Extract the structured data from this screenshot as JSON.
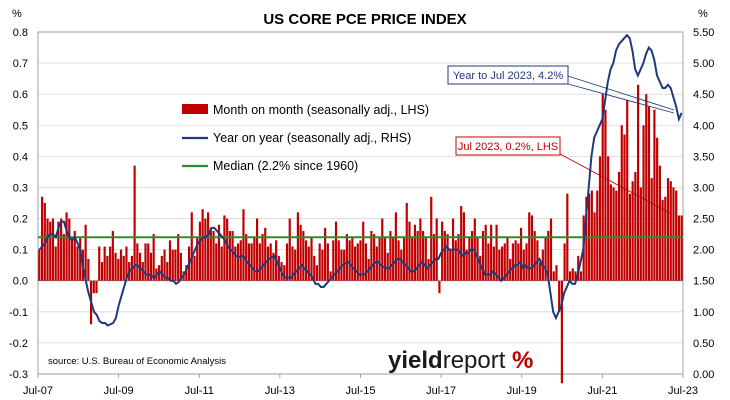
{
  "chart_data": {
    "type": "bar+line",
    "title": "US CORE PCE PRICE INDEX",
    "left_unit": "%",
    "right_unit": "%",
    "x_tick_labels": [
      "Jul-07",
      "Jul-09",
      "Jul-11",
      "Jul-13",
      "Jul-15",
      "Jul-17",
      "Jul-19",
      "Jul-21",
      "Jul-23"
    ],
    "left_axis": {
      "ylim": [
        -0.3,
        0.8
      ],
      "ticks": [
        "-0.3",
        "-0.2",
        "-0.1",
        "0.0",
        "0.1",
        "0.2",
        "0.3",
        "0.4",
        "0.5",
        "0.6",
        "0.7",
        "0.8"
      ]
    },
    "right_axis": {
      "ylim": [
        0.0,
        5.5
      ],
      "ticks": [
        "0.00",
        "0.50",
        "1.00",
        "1.50",
        "2.00",
        "2.50",
        "3.00",
        "3.50",
        "4.00",
        "4.50",
        "5.00",
        "5.50"
      ]
    },
    "legend": [
      {
        "label": "Month on month (seasonally adj., LHS)",
        "color": "#c00000"
      },
      {
        "label": "Year on year (seasonally adj., RHS)",
        "color": "#1f3a7a"
      },
      {
        "label": "Median (2.2% since 1960)",
        "color": "#2e8b2e"
      }
    ],
    "annotations": {
      "yoy": "Year to Jul 2023, 4.2%",
      "mom": "Jul 2023, 0.2%, LHS"
    },
    "source": "source: U.S. Bureau of Economic Analysis",
    "logo": {
      "part1": "yield",
      "part2": "report",
      "symbol": "%"
    },
    "median_rhs": 2.2,
    "series": [
      {
        "name": "Month on month (seasonally adj., LHS)",
        "color": "#c00000",
        "values": [
          0.1,
          0.27,
          0.25,
          0.2,
          0.19,
          0.2,
          0.11,
          0.19,
          0.2,
          0.15,
          0.22,
          0.2,
          0.14,
          0.16,
          0.11,
          0.14,
          0.1,
          0.18,
          0.07,
          -0.14,
          -0.04,
          -0.04,
          0.11,
          0.06,
          0.11,
          0.08,
          0.11,
          0.16,
          0.09,
          0.07,
          0.1,
          0.08,
          0.11,
          0.06,
          0.08,
          0.37,
          0.12,
          0.09,
          0.06,
          0.12,
          0.12,
          0.09,
          0.15,
          0.04,
          0.05,
          0.08,
          0.1,
          0.06,
          0.13,
          0.1,
          0.1,
          0.15,
          0.09,
          0.03,
          0.05,
          0.11,
          0.22,
          0.08,
          0.14,
          0.19,
          0.23,
          0.2,
          0.22,
          0.17,
          0.16,
          0.12,
          0.18,
          0.11,
          0.21,
          0.2,
          0.16,
          0.16,
          0.11,
          0.12,
          0.13,
          0.23,
          0.15,
          0.12,
          0.12,
          0.14,
          0.2,
          0.12,
          0.15,
          0.17,
          0.11,
          0.12,
          0.09,
          0.13,
          0.08,
          0.06,
          0.05,
          0.12,
          0.2,
          0.11,
          0.1,
          0.22,
          0.18,
          0.16,
          0.13,
          0.11,
          0.14,
          0.08,
          0.05,
          0.12,
          0.1,
          0.17,
          0.12,
          0.03,
          0.13,
          0.19,
          0.13,
          0.1,
          0.1,
          0.15,
          0.13,
          0.14,
          0.11,
          0.12,
          0.13,
          0.19,
          0.12,
          0.07,
          0.16,
          0.15,
          0.11,
          0.14,
          0.2,
          0.14,
          0.09,
          0.16,
          0.14,
          0.22,
          0.13,
          0.1,
          0.14,
          0.25,
          0.19,
          0.14,
          0.18,
          0.16,
          0.2,
          0.16,
          0.14,
          0.07,
          0.27,
          0.15,
          0.2,
          -0.04,
          0.19,
          0.16,
          0.15,
          0.1,
          0.2,
          0.13,
          0.15,
          0.24,
          0.22,
          0.1,
          0.14,
          0.16,
          0.2,
          0.14,
          0.08,
          0.16,
          0.18,
          0.12,
          0.18,
          0.11,
          0.18,
          0.1,
          0.11,
          0.12,
          0.14,
          0.07,
          0.12,
          0.13,
          0.12,
          0.17,
          0.1,
          0.12,
          0.22,
          0.21,
          0.16,
          0.13,
          0.06,
          0.1,
          0.14,
          0.16,
          0.2,
          0.03,
          0.05,
          -0.1,
          -0.33,
          0.12,
          0.28,
          0.03,
          0.04,
          0.03,
          0.08,
          0.03,
          0.21,
          0.27,
          0.28,
          0.29,
          0.22,
          0.29,
          0.4,
          0.6,
          0.55,
          0.4,
          0.31,
          0.3,
          0.29,
          0.35,
          0.5,
          0.47,
          0.58,
          0.28,
          0.32,
          0.35,
          0.63,
          0.3,
          0.5,
          0.6,
          0.56,
          0.33,
          0.55,
          0.46,
          0.37,
          0.26,
          0.27,
          0.33,
          0.32,
          0.3,
          0.29,
          0.21,
          0.21
        ]
      },
      {
        "name": "Year on year (seasonally adj., RHS)",
        "color": "#1f3a7a",
        "values": [
          2.0,
          2.05,
          2.1,
          2.2,
          2.25,
          2.25,
          2.2,
          2.35,
          2.45,
          2.45,
          2.3,
          2.2,
          2.15,
          2.2,
          2.1,
          2.0,
          1.7,
          1.5,
          1.3,
          1.15,
          1.0,
          0.95,
          0.85,
          0.82,
          0.82,
          0.78,
          0.8,
          0.82,
          0.9,
          1.1,
          1.25,
          1.4,
          1.55,
          1.65,
          1.7,
          1.75,
          1.75,
          1.7,
          1.65,
          1.6,
          1.6,
          1.58,
          1.55,
          1.6,
          1.65,
          1.6,
          1.55,
          1.55,
          1.5,
          1.5,
          1.45,
          1.48,
          1.55,
          1.6,
          1.7,
          1.8,
          1.9,
          2.0,
          2.1,
          2.15,
          2.2,
          2.2,
          2.25,
          2.35,
          2.35,
          2.3,
          2.25,
          2.2,
          2.15,
          2.05,
          2.0,
          1.95,
          1.9,
          1.88,
          1.9,
          1.88,
          1.8,
          1.75,
          1.7,
          1.65,
          1.65,
          1.7,
          1.75,
          1.8,
          1.85,
          1.88,
          1.9,
          1.8,
          1.7,
          1.6,
          1.55,
          1.55,
          1.55,
          1.6,
          1.65,
          1.7,
          1.75,
          1.7,
          1.65,
          1.6,
          1.55,
          1.45,
          1.45,
          1.4,
          1.4,
          1.45,
          1.5,
          1.55,
          1.6,
          1.65,
          1.7,
          1.75,
          1.78,
          1.8,
          1.75,
          1.7,
          1.65,
          1.6,
          1.6,
          1.6,
          1.65,
          1.7,
          1.75,
          1.8,
          1.8,
          1.75,
          1.72,
          1.7,
          1.7,
          1.75,
          1.8,
          1.85,
          1.85,
          1.8,
          1.75,
          1.7,
          1.65,
          1.65,
          1.7,
          1.75,
          1.8,
          1.75,
          1.7,
          1.75,
          1.8,
          1.85,
          1.85,
          1.95,
          2.0,
          2.05,
          2.0,
          2.0,
          2.0,
          2.0,
          1.95,
          1.9,
          1.95,
          1.95,
          2.0,
          2.0,
          1.9,
          1.8,
          1.7,
          1.6,
          1.6,
          1.6,
          1.65,
          1.6,
          1.55,
          1.5,
          1.55,
          1.6,
          1.65,
          1.7,
          1.75,
          1.75,
          1.8,
          1.7,
          1.75,
          1.7,
          1.7,
          1.75,
          1.8,
          1.85,
          1.75,
          1.7,
          1.6,
          1.3,
          1.0,
          0.9,
          1.0,
          1.1,
          1.3,
          1.4,
          1.5,
          1.45,
          1.45,
          1.6,
          1.8,
          2.0,
          2.5,
          3.0,
          3.5,
          3.8,
          3.9,
          4.0,
          4.1,
          4.4,
          4.7,
          4.9,
          5.0,
          5.2,
          5.3,
          5.35,
          5.4,
          5.45,
          5.4,
          5.2,
          4.9,
          4.8,
          4.9,
          5.0,
          5.15,
          5.25,
          5.2,
          5.05,
          4.8,
          4.7,
          4.6,
          4.6,
          4.65,
          4.6,
          4.45,
          4.3,
          4.1,
          4.2
        ]
      }
    ]
  }
}
